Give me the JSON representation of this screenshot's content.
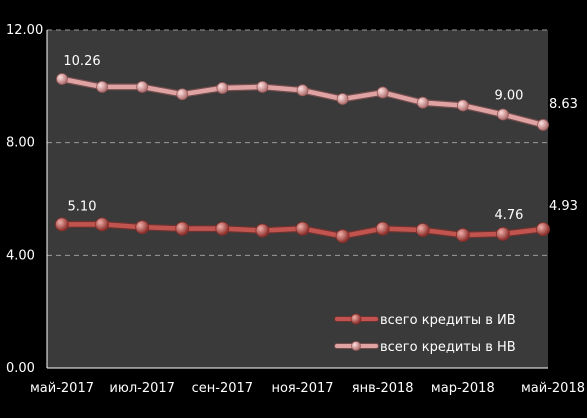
{
  "chart_data": {
    "type": "line",
    "title": "",
    "xlabel": "",
    "ylabel": "",
    "ylim": [
      0,
      12
    ],
    "yticks": [
      "0.00",
      "4.00",
      "8.00",
      "12.00"
    ],
    "ytick_values": [
      0,
      4,
      8,
      12
    ],
    "grid": "horizontal dashed",
    "legend_position": "bottom-right",
    "x_labels": [
      "май-2017",
      "июл-2017",
      "сен-2017",
      "ноя-2017",
      "янв-2018",
      "мар-2018",
      "май-2018"
    ],
    "x_label_indices": [
      0,
      2,
      4,
      6,
      8,
      10,
      12
    ],
    "x": [
      "май-2017",
      "июн-2017",
      "июл-2017",
      "авг-2017",
      "сен-2017",
      "окт-2017",
      "ноя-2017",
      "дек-2017",
      "янв-2018",
      "фев-2018",
      "мар-2018",
      "апр-2018",
      "май-2018"
    ],
    "series": [
      {
        "name": "всего кредиты в ИВ",
        "color": "#c2544f",
        "values": [
          5.1,
          5.1,
          5.0,
          4.95,
          4.95,
          4.88,
          4.95,
          4.68,
          4.95,
          4.9,
          4.72,
          4.76,
          4.93
        ],
        "labels": [
          {
            "index": 0,
            "text": "5.10"
          },
          {
            "index": 11,
            "text": "4.76"
          },
          {
            "index": 12,
            "text": "4.93"
          }
        ]
      },
      {
        "name": "всего кредиты в НВ",
        "color": "#e0a3a3",
        "values": [
          10.26,
          9.98,
          9.98,
          9.72,
          9.94,
          9.98,
          9.86,
          9.55,
          9.78,
          9.42,
          9.32,
          9.0,
          8.63
        ],
        "labels": [
          {
            "index": 0,
            "text": "10.26"
          },
          {
            "index": 11,
            "text": "9.00"
          },
          {
            "index": 12,
            "text": "8.63"
          }
        ]
      }
    ],
    "colors": {
      "background": "#000000",
      "plot_background": "#3a3a3a",
      "grid": "#9a9a9a",
      "axis": "#ffffff",
      "text": "#ffffff"
    }
  }
}
